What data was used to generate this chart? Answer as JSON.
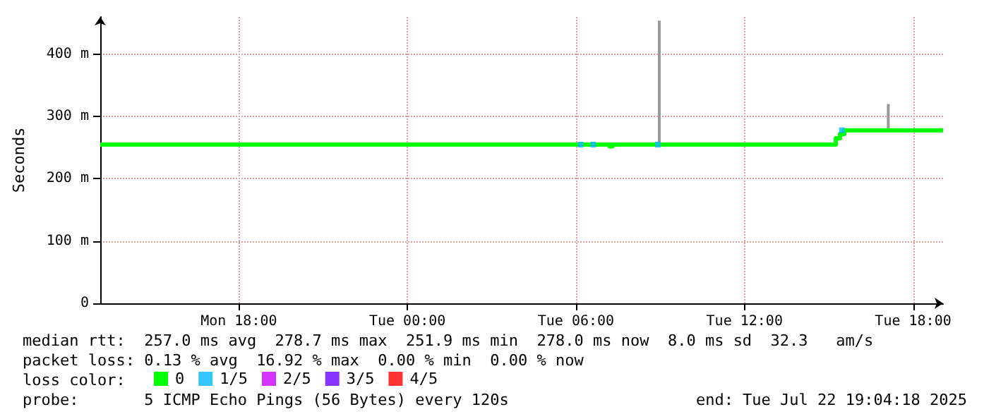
{
  "chart_data": {
    "type": "step",
    "ylabel": "Seconds",
    "legend_title": "loss color:",
    "legend": "bottom",
    "grid": true,
    "marker": "none",
    "xlim": [
      "2025-07-21T13:04",
      "2025-07-22T19:04"
    ],
    "xticks": [
      {
        "value": "2025-07-21T18:00",
        "label": "Mon 18:00"
      },
      {
        "value": "2025-07-22T00:00",
        "label": "Tue 00:00"
      },
      {
        "value": "2025-07-22T06:00",
        "label": "Tue 06:00"
      },
      {
        "value": "2025-07-22T12:00",
        "label": "Tue 12:00"
      },
      {
        "value": "2025-07-22T18:00",
        "label": "Tue 18:00"
      }
    ],
    "ylim": [
      0,
      460
    ],
    "yticks": [
      0,
      {
        "value": 100,
        "label": "100 m"
      },
      {
        "value": 200,
        "label": "200 m"
      },
      {
        "value": 300,
        "label": "300 m"
      },
      {
        "value": 400,
        "label": "400 m"
      }
    ],
    "series": [
      {
        "type": "line",
        "color": "#999999",
        "x": [
          "2025-07-22T08:58",
          "2025-07-22T08:58",
          "2025-07-22T09:00",
          "2025-07-22T17:07",
          "2025-07-22T17:07"
        ],
        "values": [
          255,
          454,
          null,
          278,
          320
        ]
      },
      {
        "name": "0",
        "color": "#00ff00",
        "x": [
          "2025-07-21T13:04",
          "2025-07-22T07:06",
          "2025-07-22T07:12",
          "2025-07-22T07:18",
          "2025-07-22T15:12",
          "2025-07-22T15:15",
          "2025-07-22T15:24",
          "2025-07-22T15:33",
          "2025-07-22T19:04"
        ],
        "values": [
          255,
          255,
          252,
          255,
          255,
          265,
          272,
          278,
          278
        ]
      },
      {
        "name": "1/5",
        "type": "scatter",
        "marker": "square",
        "color": "#00b8ff",
        "x": [
          "2025-07-22T06:10",
          "2025-07-22T06:37",
          "2025-07-22T08:55",
          "2025-07-22T15:28"
        ],
        "values": [
          255,
          255,
          255,
          278
        ]
      },
      {
        "name": "2/5",
        "type": "scatter",
        "color": "#cc00ff"
      },
      {
        "name": "3/5",
        "type": "scatter",
        "color": "#6600ff"
      },
      {
        "name": "4/5",
        "type": "scatter",
        "color": "#ff0000"
      }
    ],
    "annotations": [
      "median rtt:  257.0 ms avg  278.7 ms max  251.9 ms min  278.0 ms now  8.0 ms sd  32.3   am/s",
      "packet loss: 0.13 % avg  16.92 % max  0.00 % min  0.00 % now",
      "probe:       5 ICMP Echo Pings (56 Bytes) every 120s",
      "end: Tue Jul 22 19:04:18 2025"
    ]
  }
}
